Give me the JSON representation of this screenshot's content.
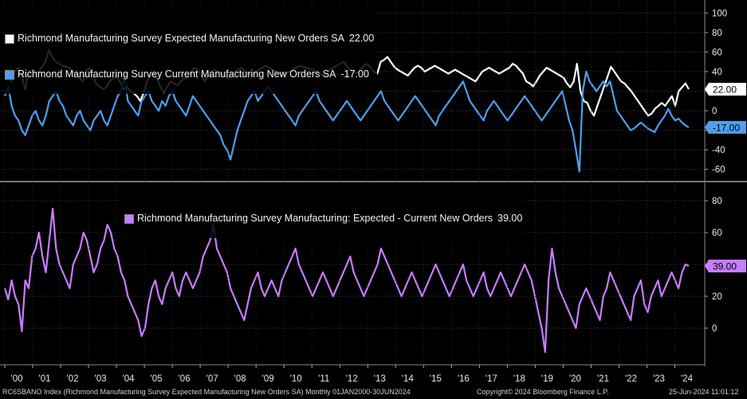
{
  "chart_data": [
    {
      "type": "line",
      "panel": "top",
      "series": [
        {
          "name": "Richmond Manufacturing Survey Expected Manufacturing New Orders SA",
          "last_label": "22.00",
          "color": "#ffffff",
          "values": [
            38,
            42,
            30,
            40,
            44,
            35,
            22,
            40,
            41,
            38,
            40,
            45,
            50,
            62,
            55,
            50,
            48,
            46,
            45,
            44,
            40,
            38,
            34,
            30,
            40,
            44,
            35,
            28,
            25,
            22,
            24,
            30,
            33,
            35,
            30,
            22,
            25,
            20,
            18,
            15,
            10,
            18,
            30,
            36,
            38,
            33,
            24,
            18,
            25,
            30,
            28,
            26,
            30,
            33,
            35,
            40,
            44,
            42,
            36,
            30,
            35,
            40,
            42,
            40,
            38,
            36,
            33,
            38,
            40,
            42,
            44,
            40,
            38,
            36,
            40,
            42,
            44,
            46,
            44,
            42,
            40,
            38,
            36,
            38,
            40,
            42,
            44,
            46,
            45,
            44,
            43,
            42,
            40,
            38,
            36,
            38,
            42,
            44,
            46,
            48,
            50,
            46,
            42,
            40,
            38,
            42,
            46,
            48,
            44,
            40,
            38,
            50,
            52,
            55,
            50,
            45,
            42,
            40,
            38,
            36,
            40,
            44,
            46,
            44,
            40,
            42,
            44,
            46,
            44,
            42,
            40,
            38,
            40,
            42,
            40,
            38,
            36,
            34,
            32,
            30,
            35,
            40,
            42,
            44,
            42,
            40,
            38,
            40,
            42,
            44,
            48,
            46,
            42,
            38,
            30,
            28,
            25,
            30,
            36,
            40,
            44,
            42,
            40,
            38,
            36,
            34,
            28,
            24,
            30,
            48,
            20,
            10,
            8,
            0,
            -5,
            5,
            15,
            25,
            35,
            45,
            40,
            35,
            30,
            28,
            24,
            20,
            15,
            10,
            5,
            0,
            -5,
            -3,
            2,
            5,
            8,
            5,
            10,
            15,
            5,
            20,
            24,
            28,
            22
          ],
          "ylim": [
            -70,
            110
          ],
          "ticks": [
            -60,
            -40,
            -20,
            0,
            20,
            40,
            60,
            80,
            100
          ]
        },
        {
          "name": "Richmond Manufacturing Survey Current Manufacturing New Orders SA",
          "last_label": "-17.00",
          "color": "#4f9ef0",
          "values": [
            15,
            25,
            5,
            -5,
            -10,
            -20,
            -25,
            -15,
            -5,
            0,
            -10,
            -15,
            -5,
            10,
            15,
            20,
            10,
            5,
            -5,
            -10,
            -15,
            -5,
            0,
            -10,
            -15,
            -20,
            -10,
            -5,
            0,
            -10,
            -15,
            -5,
            5,
            15,
            20,
            35,
            10,
            5,
            0,
            -5,
            10,
            15,
            20,
            10,
            5,
            0,
            10,
            5,
            15,
            20,
            10,
            5,
            0,
            -5,
            5,
            15,
            10,
            5,
            0,
            -5,
            -10,
            -15,
            -20,
            -25,
            -35,
            -40,
            -50,
            -35,
            -20,
            -10,
            0,
            10,
            15,
            20,
            10,
            15,
            20,
            25,
            20,
            15,
            10,
            5,
            0,
            -5,
            -10,
            -15,
            -5,
            0,
            5,
            10,
            15,
            20,
            10,
            5,
            0,
            -5,
            -10,
            -5,
            0,
            5,
            10,
            5,
            0,
            -5,
            -10,
            -5,
            0,
            5,
            10,
            15,
            20,
            10,
            5,
            0,
            -5,
            -10,
            -5,
            0,
            5,
            10,
            15,
            10,
            5,
            0,
            -5,
            -10,
            -15,
            -5,
            0,
            5,
            10,
            15,
            20,
            25,
            30,
            20,
            10,
            5,
            0,
            -5,
            -10,
            0,
            5,
            10,
            5,
            0,
            -5,
            -10,
            -5,
            0,
            5,
            10,
            15,
            10,
            5,
            0,
            -5,
            -10,
            -5,
            0,
            5,
            10,
            15,
            20,
            5,
            -10,
            -20,
            -40,
            -62,
            20,
            40,
            30,
            25,
            20,
            25,
            30,
            25,
            30,
            15,
            0,
            -5,
            -10,
            -15,
            -20,
            -18,
            -15,
            -12,
            -15,
            -18,
            -20,
            -22,
            -15,
            -10,
            -5,
            2,
            -5,
            -10,
            -8,
            -12,
            -15,
            -17
          ],
          "ylim": [
            -70,
            110
          ]
        }
      ]
    },
    {
      "type": "line",
      "panel": "bottom",
      "series": [
        {
          "name": "Richmond Manufacturing Survey Manufacturing: Expected - Current New Orders",
          "last_label": "39.00",
          "color": "#c77dff",
          "values": [
            25,
            18,
            30,
            20,
            15,
            -2,
            30,
            25,
            45,
            50,
            60,
            45,
            35,
            55,
            75,
            50,
            40,
            35,
            30,
            25,
            40,
            45,
            50,
            60,
            55,
            45,
            35,
            40,
            50,
            55,
            65,
            60,
            50,
            45,
            35,
            30,
            20,
            15,
            10,
            5,
            -5,
            0,
            15,
            25,
            30,
            20,
            15,
            25,
            30,
            35,
            25,
            20,
            30,
            35,
            30,
            25,
            30,
            35,
            45,
            50,
            55,
            65,
            50,
            45,
            40,
            35,
            25,
            20,
            15,
            10,
            5,
            15,
            25,
            30,
            35,
            25,
            20,
            25,
            30,
            25,
            20,
            30,
            35,
            40,
            45,
            50,
            40,
            35,
            30,
            25,
            20,
            25,
            30,
            35,
            30,
            25,
            20,
            25,
            30,
            35,
            40,
            45,
            35,
            30,
            25,
            20,
            25,
            30,
            35,
            40,
            50,
            45,
            40,
            35,
            30,
            25,
            20,
            25,
            30,
            35,
            30,
            25,
            20,
            25,
            30,
            35,
            40,
            35,
            30,
            25,
            20,
            25,
            30,
            35,
            40,
            30,
            25,
            20,
            25,
            30,
            35,
            25,
            20,
            25,
            30,
            35,
            30,
            25,
            20,
            25,
            30,
            35,
            40,
            35,
            30,
            20,
            10,
            0,
            -15,
            30,
            50,
            35,
            25,
            20,
            15,
            10,
            5,
            0,
            15,
            20,
            25,
            20,
            15,
            10,
            5,
            20,
            25,
            35,
            30,
            25,
            20,
            15,
            10,
            5,
            20,
            25,
            30,
            15,
            10,
            20,
            25,
            30,
            20,
            25,
            30,
            35,
            30,
            25,
            35,
            40,
            39
          ],
          "ylim": [
            -20,
            90
          ],
          "ticks": [
            0,
            20,
            40,
            60,
            80
          ]
        }
      ]
    }
  ],
  "legends": {
    "top": [
      {
        "label": "Richmond Manufacturing Survey Expected Manufacturing New Orders SA",
        "value": "22.00",
        "color": "#ffffff"
      },
      {
        "label": "Richmond Manufacturing Survey Current Manufacturing New Orders SA",
        "value": "-17.00",
        "color": "#4f9ef0"
      }
    ],
    "bottom": [
      {
        "label": "Richmond Manufacturing Survey Manufacturing: Expected - Current New Orders",
        "value": "39.00",
        "color": "#c77dff"
      }
    ]
  },
  "x_axis": {
    "labels": [
      "'00",
      "'01",
      "'02",
      "'03",
      "'04",
      "'05",
      "'06",
      "'07",
      "'08",
      "'09",
      "'10",
      "'11",
      "'12",
      "'13",
      "'14",
      "'15",
      "'16",
      "'17",
      "'18",
      "'19",
      "'20",
      "'21",
      "'22",
      "'23",
      "'24"
    ]
  },
  "footer": {
    "left": "RC6SBANO Index (Richmond Manufacturing Survey Expected Manufacturing New Orders SA)  Monthly 01JAN2000-30JUN2024",
    "center": "Copyright© 2024 Bloomberg Finance L.P.",
    "right": "25-Jun-2024 11:01:12"
  }
}
